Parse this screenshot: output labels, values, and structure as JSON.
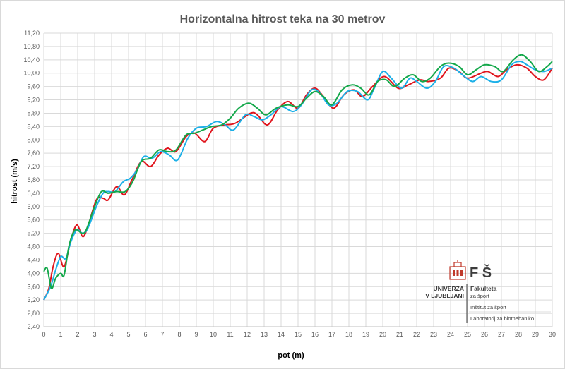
{
  "chart_data": {
    "type": "line",
    "title": "Horizontalna  hitrost  teka na 30 metrov",
    "xlabel": "pot (m)",
    "ylabel": "hitrost (m/s)",
    "xlim": [
      0,
      30
    ],
    "ylim": [
      2.4,
      11.2
    ],
    "x_ticks": [
      "0",
      "1",
      "2",
      "3",
      "4",
      "5",
      "6",
      "7",
      "8",
      "9",
      "10",
      "11",
      "12",
      "13",
      "14",
      "15",
      "16",
      "17",
      "18",
      "19",
      "20",
      "21",
      "22",
      "23",
      "24",
      "25",
      "26",
      "27",
      "28",
      "29",
      "30"
    ],
    "y_ticks": [
      "2,40",
      "2,80",
      "3,20",
      "3,60",
      "4,00",
      "4,40",
      "4,80",
      "5,20",
      "5,60",
      "6,00",
      "6,40",
      "6,80",
      "7,20",
      "7,60",
      "8,00",
      "8,40",
      "8,80",
      "9,20",
      "9,60",
      "10,00",
      "10,40",
      "10,80",
      "11,20"
    ],
    "grid": true,
    "series": [
      {
        "color": "#e0141c",
        "points": [
          [
            0,
            3.2
          ],
          [
            0.3,
            3.55
          ],
          [
            0.55,
            4.2
          ],
          [
            0.85,
            4.6
          ],
          [
            1.2,
            4.2
          ],
          [
            1.6,
            5.0
          ],
          [
            1.95,
            5.45
          ],
          [
            2.3,
            5.1
          ],
          [
            2.6,
            5.4
          ],
          [
            3.1,
            6.2
          ],
          [
            3.5,
            6.25
          ],
          [
            3.8,
            6.2
          ],
          [
            4.3,
            6.6
          ],
          [
            4.75,
            6.35
          ],
          [
            5.2,
            6.8
          ],
          [
            5.75,
            7.35
          ],
          [
            6.3,
            7.2
          ],
          [
            6.8,
            7.55
          ],
          [
            7.3,
            7.75
          ],
          [
            7.8,
            7.65
          ],
          [
            8.4,
            8.1
          ],
          [
            8.9,
            8.2
          ],
          [
            9.5,
            7.95
          ],
          [
            10.0,
            8.35
          ],
          [
            10.7,
            8.45
          ],
          [
            11.3,
            8.5
          ],
          [
            12.2,
            8.8
          ],
          [
            12.6,
            8.75
          ],
          [
            13.2,
            8.45
          ],
          [
            13.8,
            8.9
          ],
          [
            14.4,
            9.15
          ],
          [
            15.0,
            8.95
          ],
          [
            15.5,
            9.35
          ],
          [
            16.0,
            9.55
          ],
          [
            16.5,
            9.3
          ],
          [
            17.1,
            8.95
          ],
          [
            17.7,
            9.35
          ],
          [
            18.3,
            9.5
          ],
          [
            18.8,
            9.3
          ],
          [
            19.4,
            9.6
          ],
          [
            20.1,
            9.9
          ],
          [
            20.9,
            9.55
          ],
          [
            21.5,
            9.65
          ],
          [
            22.2,
            9.8
          ],
          [
            22.7,
            9.75
          ],
          [
            23.4,
            9.85
          ],
          [
            23.9,
            10.15
          ],
          [
            24.5,
            10.05
          ],
          [
            25.0,
            9.85
          ],
          [
            25.8,
            10.0
          ],
          [
            26.2,
            10.05
          ],
          [
            26.8,
            9.9
          ],
          [
            27.3,
            10.1
          ],
          [
            27.9,
            10.25
          ],
          [
            28.5,
            10.15
          ],
          [
            29.0,
            9.9
          ],
          [
            29.5,
            9.8
          ],
          [
            30.0,
            10.15
          ]
        ]
      },
      {
        "color": "#1cb0e8",
        "points": [
          [
            0,
            3.2
          ],
          [
            0.4,
            3.6
          ],
          [
            0.7,
            4.1
          ],
          [
            1.0,
            4.5
          ],
          [
            1.3,
            4.45
          ],
          [
            1.6,
            4.95
          ],
          [
            1.95,
            5.3
          ],
          [
            2.3,
            5.2
          ],
          [
            2.6,
            5.35
          ],
          [
            3.1,
            6.0
          ],
          [
            3.5,
            6.4
          ],
          [
            3.8,
            6.45
          ],
          [
            4.2,
            6.45
          ],
          [
            4.7,
            6.75
          ],
          [
            5.1,
            6.85
          ],
          [
            5.5,
            7.1
          ],
          [
            5.9,
            7.5
          ],
          [
            6.4,
            7.45
          ],
          [
            6.9,
            7.65
          ],
          [
            7.4,
            7.55
          ],
          [
            7.9,
            7.4
          ],
          [
            8.5,
            8.05
          ],
          [
            9.0,
            8.35
          ],
          [
            9.6,
            8.4
          ],
          [
            10.2,
            8.55
          ],
          [
            10.7,
            8.45
          ],
          [
            11.2,
            8.3
          ],
          [
            11.9,
            8.75
          ],
          [
            12.4,
            8.7
          ],
          [
            12.9,
            8.6
          ],
          [
            13.4,
            8.75
          ],
          [
            14.0,
            9.0
          ],
          [
            14.7,
            8.85
          ],
          [
            15.2,
            9.05
          ],
          [
            15.8,
            9.5
          ],
          [
            16.3,
            9.4
          ],
          [
            16.8,
            9.05
          ],
          [
            17.3,
            9.1
          ],
          [
            17.9,
            9.45
          ],
          [
            18.5,
            9.45
          ],
          [
            19.1,
            9.2
          ],
          [
            19.5,
            9.55
          ],
          [
            20.0,
            10.05
          ],
          [
            20.5,
            9.85
          ],
          [
            21.1,
            9.55
          ],
          [
            21.6,
            9.85
          ],
          [
            22.0,
            9.75
          ],
          [
            22.6,
            9.55
          ],
          [
            23.1,
            9.75
          ],
          [
            23.6,
            10.2
          ],
          [
            24.2,
            10.15
          ],
          [
            24.7,
            9.95
          ],
          [
            25.3,
            9.75
          ],
          [
            25.8,
            9.9
          ],
          [
            26.4,
            9.75
          ],
          [
            27.0,
            9.8
          ],
          [
            27.6,
            10.25
          ],
          [
            28.1,
            10.35
          ],
          [
            28.5,
            10.25
          ],
          [
            29.0,
            10.1
          ],
          [
            29.5,
            10.05
          ],
          [
            30.0,
            10.15
          ]
        ]
      },
      {
        "color": "#13a84a",
        "points": [
          [
            0,
            4.05
          ],
          [
            0.2,
            4.15
          ],
          [
            0.45,
            3.55
          ],
          [
            0.7,
            3.85
          ],
          [
            1.0,
            4.0
          ],
          [
            1.2,
            3.95
          ],
          [
            1.5,
            4.85
          ],
          [
            1.85,
            5.3
          ],
          [
            2.25,
            5.2
          ],
          [
            2.5,
            5.3
          ],
          [
            3.0,
            6.0
          ],
          [
            3.4,
            6.45
          ],
          [
            3.8,
            6.4
          ],
          [
            4.3,
            6.45
          ],
          [
            4.8,
            6.45
          ],
          [
            5.25,
            6.75
          ],
          [
            5.75,
            7.35
          ],
          [
            6.3,
            7.45
          ],
          [
            6.8,
            7.7
          ],
          [
            7.3,
            7.65
          ],
          [
            7.8,
            7.7
          ],
          [
            8.4,
            8.15
          ],
          [
            8.9,
            8.2
          ],
          [
            9.4,
            8.3
          ],
          [
            9.9,
            8.4
          ],
          [
            10.5,
            8.45
          ],
          [
            11.0,
            8.65
          ],
          [
            11.5,
            8.95
          ],
          [
            12.1,
            9.1
          ],
          [
            12.6,
            8.95
          ],
          [
            13.1,
            8.75
          ],
          [
            13.7,
            8.95
          ],
          [
            14.4,
            9.05
          ],
          [
            15.0,
            9.0
          ],
          [
            15.5,
            9.25
          ],
          [
            16.0,
            9.45
          ],
          [
            16.5,
            9.3
          ],
          [
            17.0,
            9.05
          ],
          [
            17.6,
            9.5
          ],
          [
            18.2,
            9.65
          ],
          [
            18.7,
            9.55
          ],
          [
            19.2,
            9.35
          ],
          [
            19.7,
            9.75
          ],
          [
            20.2,
            9.8
          ],
          [
            20.7,
            9.6
          ],
          [
            21.3,
            9.85
          ],
          [
            21.8,
            9.95
          ],
          [
            22.3,
            9.75
          ],
          [
            22.8,
            9.85
          ],
          [
            23.4,
            10.2
          ],
          [
            23.9,
            10.3
          ],
          [
            24.5,
            10.2
          ],
          [
            25.0,
            9.95
          ],
          [
            25.5,
            10.1
          ],
          [
            26.0,
            10.25
          ],
          [
            26.6,
            10.2
          ],
          [
            27.1,
            10.05
          ],
          [
            27.7,
            10.4
          ],
          [
            28.2,
            10.55
          ],
          [
            28.7,
            10.35
          ],
          [
            29.2,
            10.05
          ],
          [
            29.7,
            10.2
          ],
          [
            30.0,
            10.35
          ]
        ]
      }
    ]
  },
  "logo": {
    "univ_line1": "UNIVERZA",
    "univ_line2": "V LJUBLJANI",
    "fs_letters": "F Š",
    "fakulteta": "Fakulteta",
    "za_sport": "za šport",
    "institut": "Inštitut za šport",
    "laboratorij": "Laboratorij za biomehaniko"
  }
}
